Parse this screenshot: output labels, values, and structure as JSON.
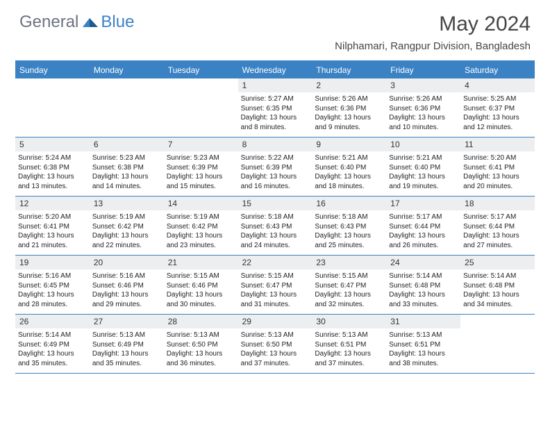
{
  "logo": {
    "part1": "General",
    "part2": "Blue"
  },
  "title": "May 2024",
  "location": "Nilphamari, Rangpur Division, Bangladesh",
  "colors": {
    "accent": "#3b82c4",
    "header_bg": "#3b82c4",
    "header_text": "#ffffff",
    "daynum_bg": "#eceeef",
    "body_text": "#222222",
    "title_text": "#454545",
    "logo_gray": "#6b7280"
  },
  "day_headers": [
    "Sunday",
    "Monday",
    "Tuesday",
    "Wednesday",
    "Thursday",
    "Friday",
    "Saturday"
  ],
  "weeks": [
    [
      {
        "empty": true
      },
      {
        "empty": true
      },
      {
        "empty": true
      },
      {
        "num": "1",
        "sunrise": "Sunrise: 5:27 AM",
        "sunset": "Sunset: 6:35 PM",
        "dl1": "Daylight: 13 hours",
        "dl2": "and 8 minutes."
      },
      {
        "num": "2",
        "sunrise": "Sunrise: 5:26 AM",
        "sunset": "Sunset: 6:36 PM",
        "dl1": "Daylight: 13 hours",
        "dl2": "and 9 minutes."
      },
      {
        "num": "3",
        "sunrise": "Sunrise: 5:26 AM",
        "sunset": "Sunset: 6:36 PM",
        "dl1": "Daylight: 13 hours",
        "dl2": "and 10 minutes."
      },
      {
        "num": "4",
        "sunrise": "Sunrise: 5:25 AM",
        "sunset": "Sunset: 6:37 PM",
        "dl1": "Daylight: 13 hours",
        "dl2": "and 12 minutes."
      }
    ],
    [
      {
        "num": "5",
        "sunrise": "Sunrise: 5:24 AM",
        "sunset": "Sunset: 6:38 PM",
        "dl1": "Daylight: 13 hours",
        "dl2": "and 13 minutes."
      },
      {
        "num": "6",
        "sunrise": "Sunrise: 5:23 AM",
        "sunset": "Sunset: 6:38 PM",
        "dl1": "Daylight: 13 hours",
        "dl2": "and 14 minutes."
      },
      {
        "num": "7",
        "sunrise": "Sunrise: 5:23 AM",
        "sunset": "Sunset: 6:39 PM",
        "dl1": "Daylight: 13 hours",
        "dl2": "and 15 minutes."
      },
      {
        "num": "8",
        "sunrise": "Sunrise: 5:22 AM",
        "sunset": "Sunset: 6:39 PM",
        "dl1": "Daylight: 13 hours",
        "dl2": "and 16 minutes."
      },
      {
        "num": "9",
        "sunrise": "Sunrise: 5:21 AM",
        "sunset": "Sunset: 6:40 PM",
        "dl1": "Daylight: 13 hours",
        "dl2": "and 18 minutes."
      },
      {
        "num": "10",
        "sunrise": "Sunrise: 5:21 AM",
        "sunset": "Sunset: 6:40 PM",
        "dl1": "Daylight: 13 hours",
        "dl2": "and 19 minutes."
      },
      {
        "num": "11",
        "sunrise": "Sunrise: 5:20 AM",
        "sunset": "Sunset: 6:41 PM",
        "dl1": "Daylight: 13 hours",
        "dl2": "and 20 minutes."
      }
    ],
    [
      {
        "num": "12",
        "sunrise": "Sunrise: 5:20 AM",
        "sunset": "Sunset: 6:41 PM",
        "dl1": "Daylight: 13 hours",
        "dl2": "and 21 minutes."
      },
      {
        "num": "13",
        "sunrise": "Sunrise: 5:19 AM",
        "sunset": "Sunset: 6:42 PM",
        "dl1": "Daylight: 13 hours",
        "dl2": "and 22 minutes."
      },
      {
        "num": "14",
        "sunrise": "Sunrise: 5:19 AM",
        "sunset": "Sunset: 6:42 PM",
        "dl1": "Daylight: 13 hours",
        "dl2": "and 23 minutes."
      },
      {
        "num": "15",
        "sunrise": "Sunrise: 5:18 AM",
        "sunset": "Sunset: 6:43 PM",
        "dl1": "Daylight: 13 hours",
        "dl2": "and 24 minutes."
      },
      {
        "num": "16",
        "sunrise": "Sunrise: 5:18 AM",
        "sunset": "Sunset: 6:43 PM",
        "dl1": "Daylight: 13 hours",
        "dl2": "and 25 minutes."
      },
      {
        "num": "17",
        "sunrise": "Sunrise: 5:17 AM",
        "sunset": "Sunset: 6:44 PM",
        "dl1": "Daylight: 13 hours",
        "dl2": "and 26 minutes."
      },
      {
        "num": "18",
        "sunrise": "Sunrise: 5:17 AM",
        "sunset": "Sunset: 6:44 PM",
        "dl1": "Daylight: 13 hours",
        "dl2": "and 27 minutes."
      }
    ],
    [
      {
        "num": "19",
        "sunrise": "Sunrise: 5:16 AM",
        "sunset": "Sunset: 6:45 PM",
        "dl1": "Daylight: 13 hours",
        "dl2": "and 28 minutes."
      },
      {
        "num": "20",
        "sunrise": "Sunrise: 5:16 AM",
        "sunset": "Sunset: 6:46 PM",
        "dl1": "Daylight: 13 hours",
        "dl2": "and 29 minutes."
      },
      {
        "num": "21",
        "sunrise": "Sunrise: 5:15 AM",
        "sunset": "Sunset: 6:46 PM",
        "dl1": "Daylight: 13 hours",
        "dl2": "and 30 minutes."
      },
      {
        "num": "22",
        "sunrise": "Sunrise: 5:15 AM",
        "sunset": "Sunset: 6:47 PM",
        "dl1": "Daylight: 13 hours",
        "dl2": "and 31 minutes."
      },
      {
        "num": "23",
        "sunrise": "Sunrise: 5:15 AM",
        "sunset": "Sunset: 6:47 PM",
        "dl1": "Daylight: 13 hours",
        "dl2": "and 32 minutes."
      },
      {
        "num": "24",
        "sunrise": "Sunrise: 5:14 AM",
        "sunset": "Sunset: 6:48 PM",
        "dl1": "Daylight: 13 hours",
        "dl2": "and 33 minutes."
      },
      {
        "num": "25",
        "sunrise": "Sunrise: 5:14 AM",
        "sunset": "Sunset: 6:48 PM",
        "dl1": "Daylight: 13 hours",
        "dl2": "and 34 minutes."
      }
    ],
    [
      {
        "num": "26",
        "sunrise": "Sunrise: 5:14 AM",
        "sunset": "Sunset: 6:49 PM",
        "dl1": "Daylight: 13 hours",
        "dl2": "and 35 minutes."
      },
      {
        "num": "27",
        "sunrise": "Sunrise: 5:13 AM",
        "sunset": "Sunset: 6:49 PM",
        "dl1": "Daylight: 13 hours",
        "dl2": "and 35 minutes."
      },
      {
        "num": "28",
        "sunrise": "Sunrise: 5:13 AM",
        "sunset": "Sunset: 6:50 PM",
        "dl1": "Daylight: 13 hours",
        "dl2": "and 36 minutes."
      },
      {
        "num": "29",
        "sunrise": "Sunrise: 5:13 AM",
        "sunset": "Sunset: 6:50 PM",
        "dl1": "Daylight: 13 hours",
        "dl2": "and 37 minutes."
      },
      {
        "num": "30",
        "sunrise": "Sunrise: 5:13 AM",
        "sunset": "Sunset: 6:51 PM",
        "dl1": "Daylight: 13 hours",
        "dl2": "and 37 minutes."
      },
      {
        "num": "31",
        "sunrise": "Sunrise: 5:13 AM",
        "sunset": "Sunset: 6:51 PM",
        "dl1": "Daylight: 13 hours",
        "dl2": "and 38 minutes."
      },
      {
        "empty": true
      }
    ]
  ]
}
